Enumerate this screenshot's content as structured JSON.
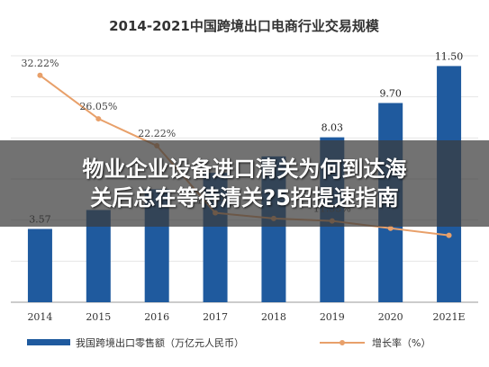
{
  "chart_data": {
    "type": "bar",
    "title": "2014-2021中国跨境出口电商行业交易规模",
    "categories": [
      "2014",
      "2015",
      "2016",
      "2017",
      "2018",
      "2019",
      "2020",
      "2021E"
    ],
    "series": [
      {
        "name": "我国跨境出口零售额（万亿元人民币）",
        "kind": "bar",
        "color": "#1f5a9e",
        "values": [
          3.57,
          4.49,
          5.5,
          6.3,
          7.1,
          8.03,
          9.7,
          11.5
        ],
        "labels": [
          "3.57",
          "",
          "",
          "",
          "",
          "8.03",
          "9.70",
          "11.50"
        ]
      },
      {
        "name": "增长率（%）",
        "kind": "line",
        "color": "#e8a06a",
        "values": [
          32.22,
          26.05,
          22.22,
          12.69,
          11.9,
          11.55,
          10.5,
          9.5
        ],
        "labels": [
          "32.22%",
          "26.05%",
          "22.22%",
          "12.69%",
          "",
          "11.55%",
          "",
          ""
        ]
      }
    ],
    "ylim": [
      0,
      12
    ],
    "y2lim": [
      0,
      35
    ],
    "grid": true,
    "legend": "bottom"
  },
  "overlay": {
    "line1": "物业企业设备进口清关为何到达海",
    "line2": "关后总在等待清关?5招提速指南"
  }
}
